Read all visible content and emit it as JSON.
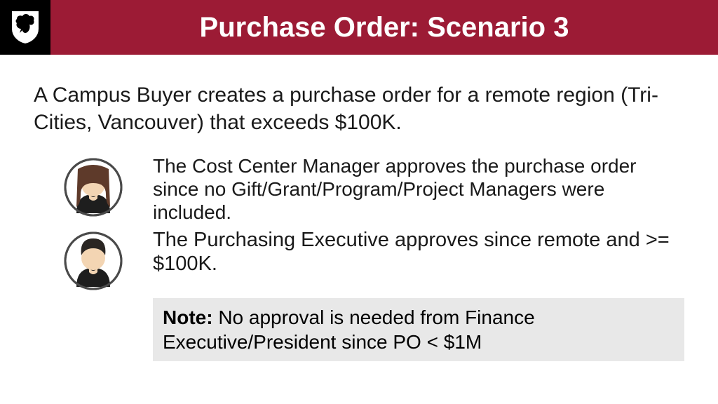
{
  "header": {
    "title": "Purchase Order: Scenario 3",
    "title_color": "#ffffff",
    "title_bg": "#9c1b35",
    "title_fontsize": 40,
    "logo_bg": "#000000"
  },
  "intro": {
    "text": "A Campus Buyer creates a purchase order for a remote region (Tri-Cities, Vancouver) that exceeds $100K.",
    "fontsize": 30,
    "color": "#1a1a1a"
  },
  "items": [
    {
      "text": "The Cost Center Manager approves the purchase order since no Gift/Grant/Program/Project Managers were included.",
      "fontsize": 28,
      "avatar": {
        "hair_color": "#5e3a2a",
        "skin_color": "#f3d5b3",
        "shirt_color": "#1e1e1e",
        "ring_color": "#4a4a4a",
        "hair_style": "long"
      }
    },
    {
      "text": "The Purchasing Executive approves since remote and >= $100K.",
      "fontsize": 29,
      "avatar": {
        "hair_color": "#2a2623",
        "skin_color": "#f3d5b3",
        "shirt_color": "#1e1e1e",
        "ring_color": "#4a4a4a",
        "hair_style": "short"
      }
    }
  ],
  "note": {
    "label": "Note:",
    "text": " No approval is needed from Finance Executive/President since PO < $1M",
    "bg": "#e8e8e8",
    "fontsize": 28
  },
  "layout": {
    "page_bg": "#ffffff",
    "avatar_diameter": 86
  }
}
